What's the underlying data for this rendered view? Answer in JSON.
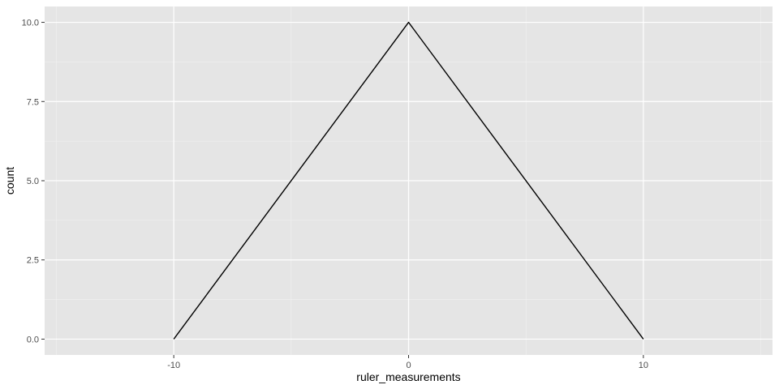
{
  "chart_data": {
    "type": "line",
    "title": "",
    "xlabel": "ruler_measurements",
    "ylabel": "count",
    "x": [
      -10,
      0,
      10
    ],
    "series": [
      {
        "values": [
          0,
          10,
          0
        ]
      }
    ],
    "xlim": [
      -15.5,
      15.5
    ],
    "ylim": [
      -0.5,
      10.5
    ],
    "x_ticks": [
      -10,
      0,
      10
    ],
    "x_tick_labels": [
      "-10",
      "0",
      "10"
    ],
    "x_minor_ticks": [
      -15,
      -5,
      5,
      15
    ],
    "y_ticks": [
      0,
      2.5,
      5,
      7.5,
      10
    ],
    "y_tick_labels": [
      "0.0",
      "2.5",
      "5.0",
      "7.5",
      "10.0"
    ],
    "y_minor_ticks": [
      1.25,
      3.75,
      6.25,
      8.75
    ],
    "grid": true,
    "legend": "none",
    "colors": {
      "panel_background": "#e5e5e5",
      "grid_major": "#ffffff",
      "grid_minor": "#f2f2f2",
      "line": "#000000",
      "tick_mark": "#333333",
      "tick_label": "#4d4d4d",
      "axis_title": "#000000"
    }
  }
}
